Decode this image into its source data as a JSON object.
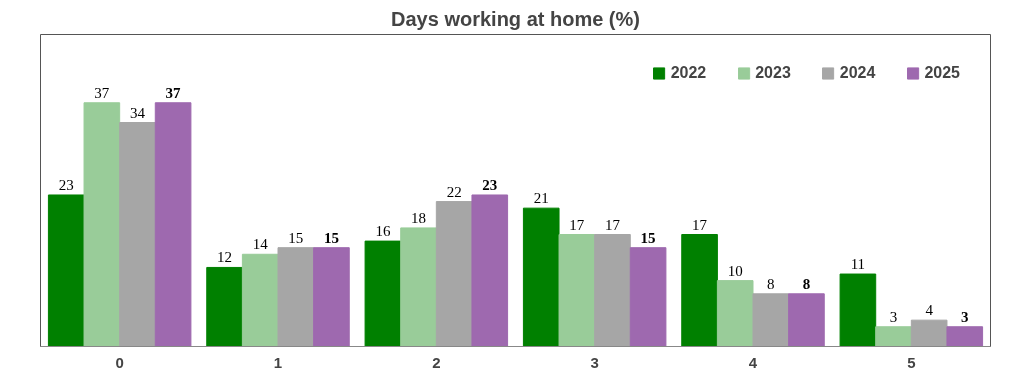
{
  "chart_data": {
    "type": "bar",
    "title": "Days working at home (%)",
    "categories": [
      "0",
      "1",
      "2",
      "3",
      "4",
      "5"
    ],
    "series": [
      {
        "name": "2022",
        "color": "#008000",
        "values": [
          23,
          12,
          16,
          21,
          17,
          11
        ]
      },
      {
        "name": "2023",
        "color": "#99cc99",
        "values": [
          37,
          14,
          18,
          17,
          10,
          3
        ]
      },
      {
        "name": "2024",
        "color": "#a6a6a6",
        "values": [
          34,
          15,
          22,
          17,
          8,
          4
        ]
      },
      {
        "name": "2025",
        "color": "#9e69af",
        "values": [
          37,
          15,
          23,
          15,
          8,
          3
        ]
      }
    ],
    "data_labels": true,
    "legend": "top right",
    "grid": false
  }
}
